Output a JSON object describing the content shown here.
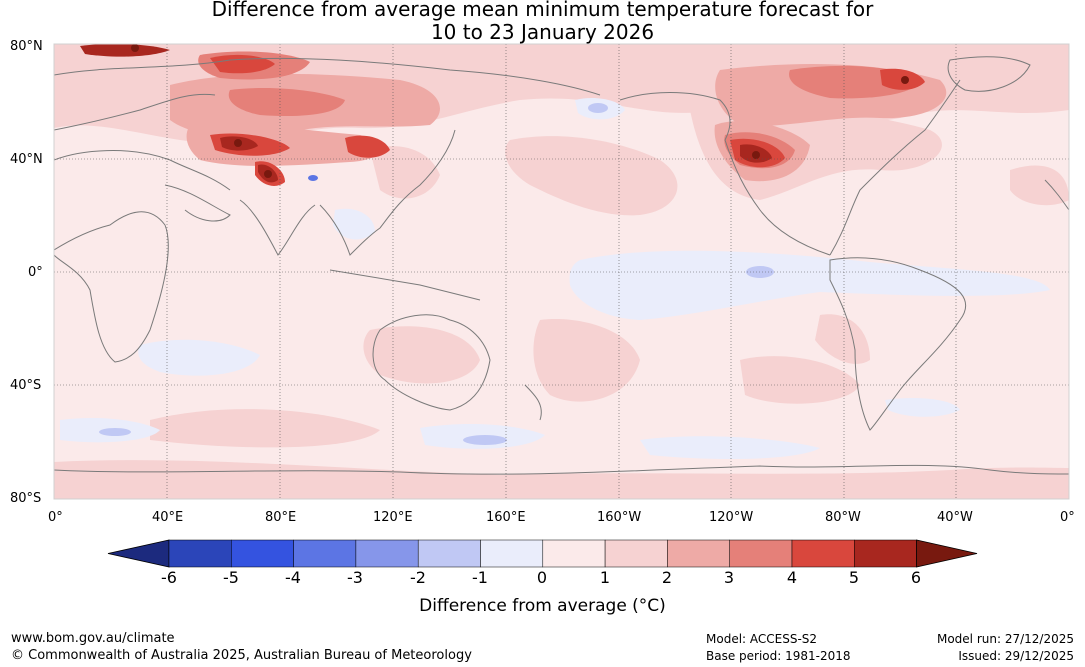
{
  "title": {
    "line1": "Difference from average mean minimum temperature forecast for",
    "line2": "10 to 23 January 2026"
  },
  "latitude_labels": [
    "80°N",
    "40°N",
    "0°",
    "40°S",
    "80°S"
  ],
  "longitude_labels": [
    "0°",
    "40°E",
    "80°E",
    "120°E",
    "160°E",
    "160°W",
    "120°W",
    "80°W",
    "40°W",
    "0°"
  ],
  "colorbar": {
    "ticks": [
      "-6",
      "-5",
      "-4",
      "-3",
      "-2",
      "-1",
      "0",
      "1",
      "2",
      "3",
      "4",
      "5",
      "6"
    ],
    "colors": [
      "#1c2a7e",
      "#2b45b9",
      "#3453e0",
      "#5c75e4",
      "#8696ea",
      "#c0c8f4",
      "#eaedfb",
      "#fbeaea",
      "#f6d2d2",
      "#eeaaa6",
      "#e58079",
      "#d9473d",
      "#a8271f",
      "#78190f"
    ],
    "label": "Difference from average (°C)"
  },
  "colors": {
    "base": "#fbeaea",
    "light_pink": "#f6d2d2",
    "pink": "#eeaaa6",
    "red": "#e58079",
    "bright_red": "#d9473d",
    "dark_red": "#a8271f",
    "maroon": "#78190f",
    "light_blue": "#eaedfb",
    "blue": "#c0c8f4",
    "mid_blue": "#5c75e4",
    "coast": "#7a7a7a",
    "grid": "#555555"
  },
  "footer": {
    "website": "www.bom.gov.au/climate",
    "copyright": "© Commonwealth of Australia 2025, Australian Bureau of Meteorology",
    "model": "Model: ACCESS-S2",
    "base_period": "Base period: 1981-2018",
    "model_run": "Model run: 27/12/2025",
    "issued": "Issued: 29/12/2025"
  }
}
